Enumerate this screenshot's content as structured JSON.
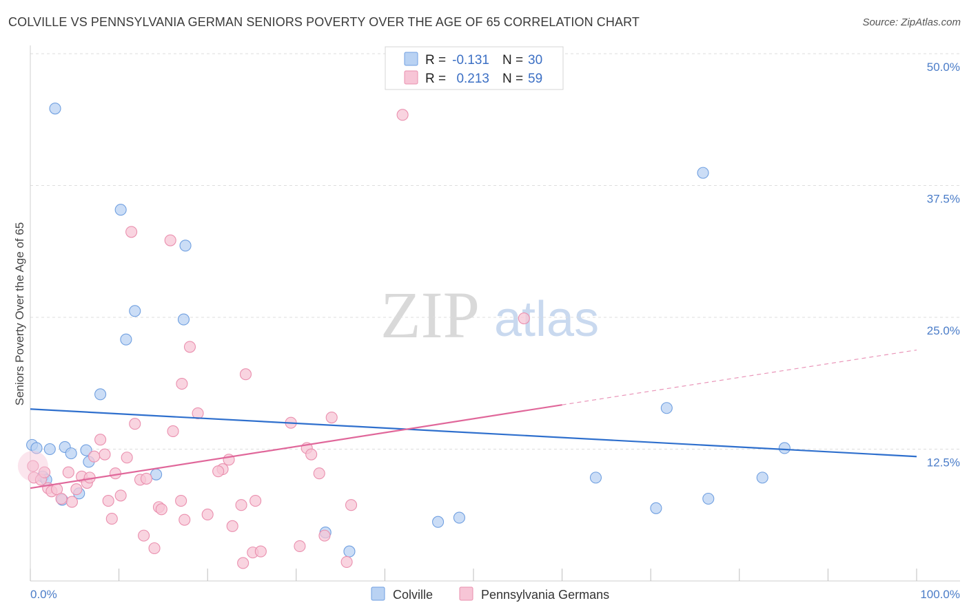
{
  "title": "COLVILLE VS PENNSYLVANIA GERMAN SENIORS POVERTY OVER THE AGE OF 65 CORRELATION CHART",
  "source": "Source: ZipAtlas.com",
  "watermark": {
    "zip": "ZIP",
    "atlas": "atlas"
  },
  "colors": {
    "colville": "#6f9fe0",
    "colville_fill": "#b9d2f3",
    "colville_line": "#2e6fcd",
    "pagerman": "#ea8fae",
    "pagerman_fill": "#f7c5d6",
    "pagerman_line": "#e0679a",
    "grid": "#dddddd",
    "axis_text": "#4a7cc8"
  },
  "legend": {
    "rows": [
      {
        "r_label": "R =",
        "r_value": "-0.131",
        "n_label": "N =",
        "n_value": "30"
      },
      {
        "r_label": "R =",
        "r_value": "0.213",
        "n_label": "N =",
        "n_value": "59"
      }
    ]
  },
  "bottom_legend": [
    "Colville",
    "Pennsylvania Germans"
  ],
  "chart_data": {
    "type": "scatter",
    "title": "COLVILLE VS PENNSYLVANIA GERMAN SENIORS POVERTY OVER THE AGE OF 65 CORRELATION CHART",
    "xlabel": "",
    "ylabel": "Seniors Poverty Over the Age of 65",
    "xlim": [
      0,
      100
    ],
    "ylim": [
      0,
      50
    ],
    "x_tick_labels": [
      "0.0%",
      "100.0%"
    ],
    "y_ticks": [
      12.5,
      25.0,
      37.5,
      50.0
    ],
    "y_tick_labels": [
      "12.5%",
      "25.0%",
      "37.5%",
      "50.0%"
    ],
    "grid": true,
    "series": [
      {
        "name": "Colville",
        "r": -0.131,
        "n": 30,
        "trend": {
          "x0": 0,
          "y0": 16.3,
          "x1": 100,
          "y1": 11.8
        },
        "points": [
          [
            2.8,
            44.8
          ],
          [
            10.2,
            35.2
          ],
          [
            17.5,
            31.8
          ],
          [
            11.8,
            25.6
          ],
          [
            17.3,
            24.8
          ],
          [
            10.8,
            22.9
          ],
          [
            7.9,
            17.7
          ],
          [
            0.2,
            12.9
          ],
          [
            0.7,
            12.6
          ],
          [
            2.2,
            12.5
          ],
          [
            3.9,
            12.7
          ],
          [
            4.6,
            12.1
          ],
          [
            6.3,
            12.4
          ],
          [
            6.6,
            11.3
          ],
          [
            1.4,
            9.9
          ],
          [
            1.8,
            9.6
          ],
          [
            14.2,
            10.1
          ],
          [
            5.5,
            8.3
          ],
          [
            3.6,
            7.7
          ],
          [
            33.3,
            4.6
          ],
          [
            36.0,
            2.8
          ],
          [
            46.0,
            5.6
          ],
          [
            48.4,
            6.0
          ],
          [
            63.8,
            9.8
          ],
          [
            70.6,
            6.9
          ],
          [
            71.8,
            16.4
          ],
          [
            76.5,
            7.8
          ],
          [
            75.9,
            38.7
          ],
          [
            82.6,
            9.8
          ],
          [
            85.1,
            12.6
          ]
        ]
      },
      {
        "name": "Pennsylvania Germans",
        "r": 0.213,
        "n": 59,
        "trend": {
          "x0": 0,
          "y0": 8.8,
          "x1": 60,
          "y1": 16.7,
          "dash_x1": 100,
          "dash_y1": 21.9
        },
        "points": [
          [
            42.0,
            44.2
          ],
          [
            11.4,
            33.1
          ],
          [
            15.8,
            32.3
          ],
          [
            55.7,
            24.9
          ],
          [
            18.0,
            22.2
          ],
          [
            24.3,
            19.6
          ],
          [
            17.1,
            18.7
          ],
          [
            18.9,
            15.9
          ],
          [
            34.0,
            15.5
          ],
          [
            11.8,
            14.9
          ],
          [
            29.4,
            15.0
          ],
          [
            16.1,
            14.2
          ],
          [
            7.9,
            13.4
          ],
          [
            8.4,
            12.0
          ],
          [
            31.2,
            12.6
          ],
          [
            31.7,
            12.0
          ],
          [
            22.4,
            11.5
          ],
          [
            10.9,
            11.7
          ],
          [
            7.2,
            11.8
          ],
          [
            21.7,
            10.6
          ],
          [
            21.2,
            10.4
          ],
          [
            32.6,
            10.2
          ],
          [
            0.4,
            9.8
          ],
          [
            1.2,
            9.6
          ],
          [
            1.6,
            10.3
          ],
          [
            4.3,
            10.3
          ],
          [
            5.8,
            9.9
          ],
          [
            6.4,
            9.3
          ],
          [
            6.7,
            9.8
          ],
          [
            9.6,
            10.2
          ],
          [
            12.4,
            9.6
          ],
          [
            13.1,
            9.7
          ],
          [
            2.0,
            8.8
          ],
          [
            2.4,
            8.5
          ],
          [
            3.0,
            8.7
          ],
          [
            5.2,
            8.7
          ],
          [
            3.5,
            7.8
          ],
          [
            4.7,
            7.5
          ],
          [
            10.2,
            8.1
          ],
          [
            8.8,
            7.6
          ],
          [
            14.5,
            7.0
          ],
          [
            14.8,
            6.8
          ],
          [
            17.0,
            7.6
          ],
          [
            23.8,
            7.2
          ],
          [
            25.4,
            7.6
          ],
          [
            36.2,
            7.2
          ],
          [
            9.2,
            5.9
          ],
          [
            17.4,
            5.8
          ],
          [
            20.0,
            6.3
          ],
          [
            22.8,
            5.2
          ],
          [
            12.8,
            4.3
          ],
          [
            14.0,
            3.1
          ],
          [
            25.1,
            2.7
          ],
          [
            26.0,
            2.8
          ],
          [
            30.4,
            3.3
          ],
          [
            33.2,
            4.3
          ],
          [
            24.0,
            1.7
          ],
          [
            35.7,
            1.8
          ],
          [
            0.3,
            10.9
          ]
        ]
      }
    ]
  }
}
